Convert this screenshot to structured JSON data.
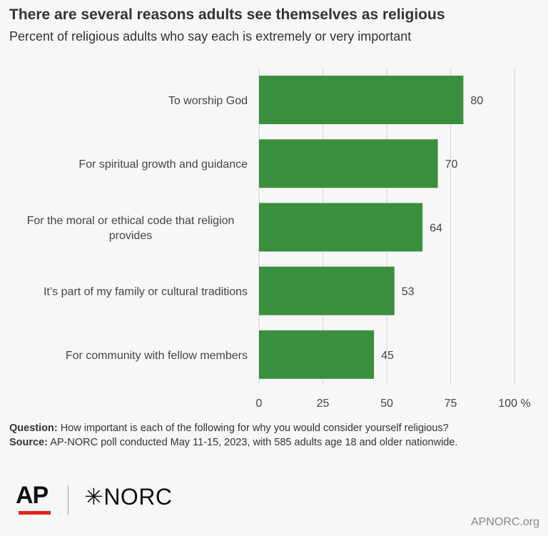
{
  "title": "There are several reasons adults see themselves as religious",
  "subtitle": "Percent of religious adults who say each is extremely or very important",
  "chart_data": {
    "type": "bar",
    "orientation": "horizontal",
    "categories": [
      [
        "To worship God"
      ],
      [
        "For spiritual growth and guidance"
      ],
      [
        "For the moral or ethical code that religion",
        "provides"
      ],
      [
        "It’s part of my family or cultural traditions"
      ],
      [
        "For community with fellow members"
      ]
    ],
    "values": [
      80,
      70,
      64,
      53,
      45
    ],
    "data_labels": [
      "80",
      "70",
      "64",
      "53",
      "45"
    ],
    "xlim": [
      0,
      100
    ],
    "ticks": [
      0,
      25,
      50,
      75,
      100
    ],
    "tick_labels": [
      "0",
      "25",
      "50",
      "75",
      "100 %"
    ],
    "bar_color": "#3a8f3f",
    "grid": true
  },
  "footnotes": {
    "question_label": "Question:",
    "question_text": " How important is each of the following for why you would consider yourself religious?",
    "source_label": "Source:",
    "source_text": " AP-NORC poll conducted May 11-15, 2023, with 585 adults age 18 and older nationwide."
  },
  "logos": {
    "ap": "AP",
    "norc": "NORC",
    "norc_mark": "✳",
    "ap_accent_color": "#e2231a"
  },
  "site": "APNORC.org"
}
